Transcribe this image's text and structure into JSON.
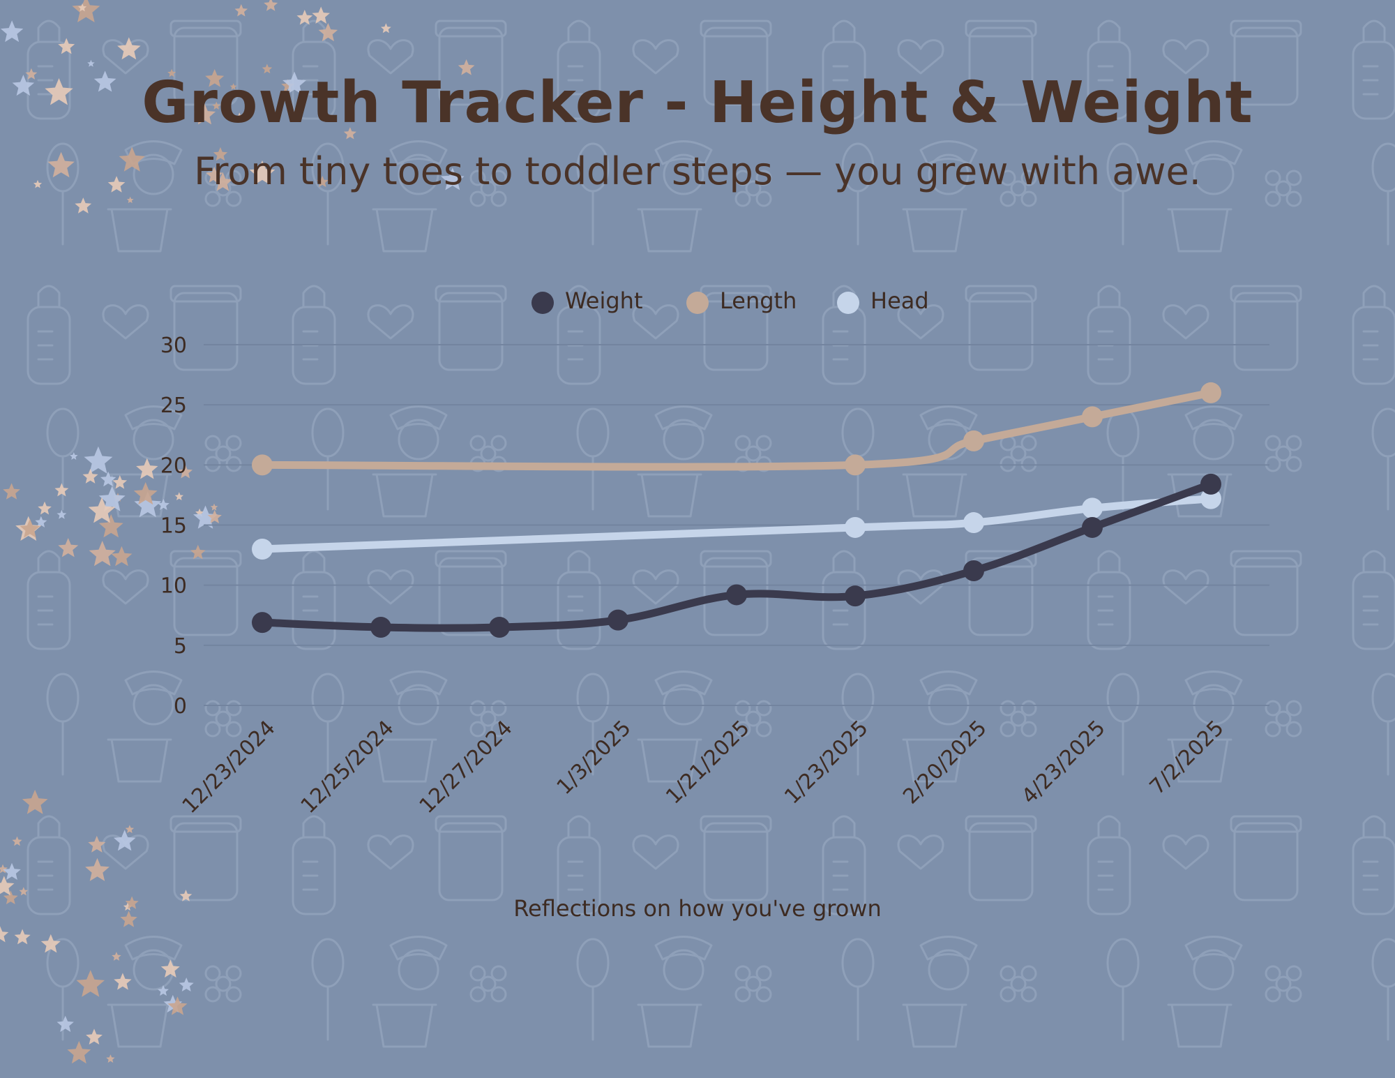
{
  "title": "Growth Tracker - Height & Weight",
  "subtitle": "From tiny toes to toddler steps — you grew with awe.",
  "caption": "Reflections on how you've grown",
  "colors": {
    "background": "#7e90ab",
    "title": "#4a3328",
    "axis_text": "#3d2b22",
    "gridline": "#73849f"
  },
  "chart_data": {
    "type": "line",
    "categories": [
      "12/23/2024",
      "12/25/2024",
      "12/27/2024",
      "1/3/2025",
      "1/21/2025",
      "1/23/2025",
      "2/20/2025",
      "4/23/2025",
      "7/2/2025"
    ],
    "ylim": [
      0,
      30
    ],
    "yticks": [
      "0",
      "5",
      "10",
      "15",
      "20",
      "25",
      "30"
    ],
    "grid": true,
    "legend_position": "top-center",
    "xlabel": "",
    "ylabel": "",
    "series": [
      {
        "name": "Weight",
        "color": "#3a3a4d",
        "x": [
          "12/23/2024",
          "12/25/2024",
          "12/27/2024",
          "1/3/2025",
          "1/21/2025",
          "1/23/2025",
          "2/20/2025",
          "4/23/2025",
          "7/2/2025"
        ],
        "values": [
          6.9,
          6.5,
          6.5,
          7.1,
          9.2,
          9.1,
          11.2,
          14.8,
          18.4
        ]
      },
      {
        "name": "Length",
        "color": "#c4aa98",
        "x": [
          "12/23/2024",
          "1/23/2025",
          "2/20/2025",
          "4/23/2025",
          "7/2/2025"
        ],
        "values": [
          20,
          20,
          22,
          24,
          26
        ]
      },
      {
        "name": "Head",
        "color": "#c6d5ea",
        "x": [
          "12/23/2024",
          "1/23/2025",
          "2/20/2025",
          "4/23/2025",
          "7/2/2025"
        ],
        "values": [
          13,
          14.8,
          15.2,
          16.4,
          17.2
        ]
      }
    ]
  }
}
